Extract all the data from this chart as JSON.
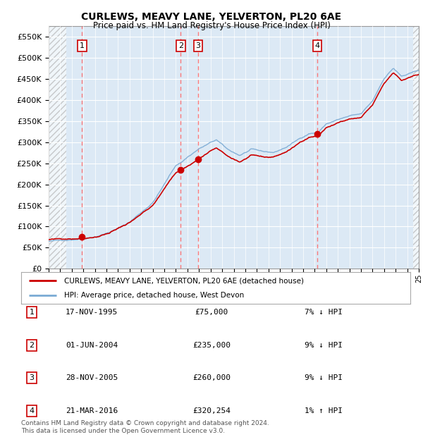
{
  "title": "CURLEWS, MEAVY LANE, YELVERTON, PL20 6AE",
  "subtitle": "Price paid vs. HM Land Registry's House Price Index (HPI)",
  "ylim": [
    0,
    575000
  ],
  "yticks": [
    0,
    50000,
    100000,
    150000,
    200000,
    250000,
    300000,
    350000,
    400000,
    450000,
    500000,
    550000
  ],
  "ytick_labels": [
    "£0",
    "£50K",
    "£100K",
    "£150K",
    "£200K",
    "£250K",
    "£300K",
    "£350K",
    "£400K",
    "£450K",
    "£500K",
    "£550K"
  ],
  "legend_line1": "CURLEWS, MEAVY LANE, YELVERTON, PL20 6AE (detached house)",
  "legend_line2": "HPI: Average price, detached house, West Devon",
  "footer": "Contains HM Land Registry data © Crown copyright and database right 2024.\nThis data is licensed under the Open Government Licence v3.0.",
  "sales": [
    {
      "num": 1,
      "date": "1995-11-17",
      "price": 75000,
      "hpi_pct": "7% ↓ HPI"
    },
    {
      "num": 2,
      "date": "2004-06-01",
      "price": 235000,
      "hpi_pct": "9% ↓ HPI"
    },
    {
      "num": 3,
      "date": "2005-11-28",
      "price": 260000,
      "hpi_pct": "9% ↓ HPI"
    },
    {
      "num": 4,
      "date": "2016-03-21",
      "price": 320254,
      "hpi_pct": "1% ↑ HPI"
    }
  ],
  "sale_date_labels": [
    "17-NOV-1995",
    "01-JUN-2004",
    "28-NOV-2005",
    "21-MAR-2016"
  ],
  "sale_price_labels": [
    "£75,000",
    "£235,000",
    "£260,000",
    "£320,254"
  ],
  "hpi_color": "#7aaad4",
  "price_color": "#cc0000",
  "sale_marker_color": "#cc0000",
  "vline_color": "#ff6666",
  "background_color": "#dce9f5",
  "grid_color": "#ffffff",
  "x_start_year": 1993,
  "x_end_year": 2025,
  "hpi_anchors_t": [
    1993.0,
    1994.0,
    1995.0,
    1996.0,
    1997.0,
    1998.0,
    1999.0,
    2000.0,
    2001.0,
    2002.0,
    2003.0,
    2004.0,
    2004.5,
    2005.0,
    2006.0,
    2007.5,
    2008.5,
    2009.5,
    2010.5,
    2011.5,
    2012.5,
    2013.5,
    2014.5,
    2015.5,
    2016.3,
    2017.0,
    2018.0,
    2019.0,
    2020.0,
    2021.0,
    2022.0,
    2022.8,
    2023.5,
    2024.5,
    2025.0
  ],
  "hpi_anchors_v": [
    65000,
    66000,
    70000,
    74000,
    80000,
    89000,
    100000,
    115000,
    138000,
    162000,
    205000,
    250000,
    258000,
    270000,
    290000,
    310000,
    285000,
    272000,
    285000,
    278000,
    276000,
    288000,
    305000,
    322000,
    325000,
    345000,
    355000,
    362000,
    365000,
    395000,
    450000,
    475000,
    455000,
    462000,
    468000
  ],
  "sale_times": [
    1995.88,
    2004.42,
    2005.91,
    2016.22
  ],
  "sale_prices": [
    75000,
    235000,
    260000,
    320254
  ]
}
